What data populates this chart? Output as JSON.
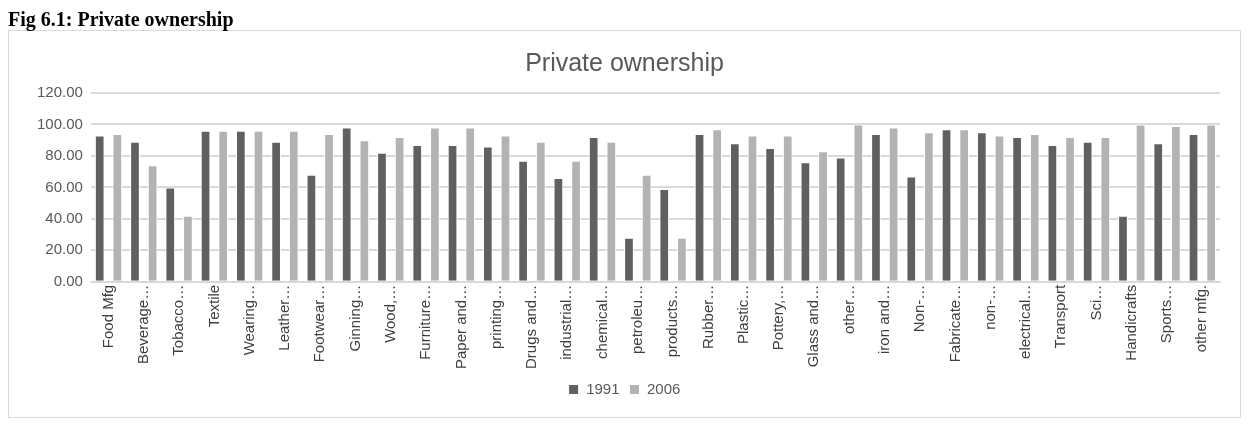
{
  "chart_data": {
    "type": "bar",
    "title": "Private ownership",
    "annotations": [
      "Fig 6.1: Private ownership"
    ],
    "categories": [
      "Food Mfg",
      "Beverage…",
      "Tobacco…",
      "Textile",
      "Wearing…",
      "Leather…",
      "Footwear…",
      "Ginning…",
      "Wood,…",
      "Furniture…",
      "Paper and…",
      "printing…",
      "Drugs and…",
      "industrial…",
      "chemical…",
      "petroleu…",
      "products…",
      "Rubber…",
      "Plastic…",
      "Pottery,…",
      "Glass and…",
      "other…",
      "iron and…",
      "Non-…",
      "Fabricate…",
      "non-…",
      "electrical…",
      "Transport",
      "Sci…",
      "Handicrafts",
      "Sports…",
      "other mfg."
    ],
    "series": [
      {
        "name": "1991",
        "color": "#606060",
        "values": [
          93,
          89,
          60,
          96,
          96,
          89,
          68,
          98,
          82,
          87,
          87,
          86,
          77,
          66,
          92,
          28,
          59,
          94,
          88,
          85,
          76,
          79,
          94,
          67,
          97,
          95,
          92,
          87,
          89,
          42,
          88,
          94
        ]
      },
      {
        "name": "2006",
        "color": "#b3b3b3",
        "values": [
          94,
          74,
          42,
          96,
          96,
          96,
          94,
          90,
          92,
          98,
          98,
          93,
          89,
          77,
          89,
          68,
          28,
          97,
          93,
          93,
          83,
          100,
          98,
          95,
          97,
          93,
          94,
          92,
          92,
          100,
          99,
          100
        ]
      }
    ],
    "ylim": [
      0,
      120
    ],
    "yticks": [
      {
        "value": 0,
        "label": "0.00"
      },
      {
        "value": 20,
        "label": "20.00"
      },
      {
        "value": 40,
        "label": "40.00"
      },
      {
        "value": 60,
        "label": "60.00"
      },
      {
        "value": 80,
        "label": "80.00"
      },
      {
        "value": 100,
        "label": "100.00"
      },
      {
        "value": 120,
        "label": "120.00"
      }
    ],
    "grid": "y",
    "legend": "bottom"
  }
}
